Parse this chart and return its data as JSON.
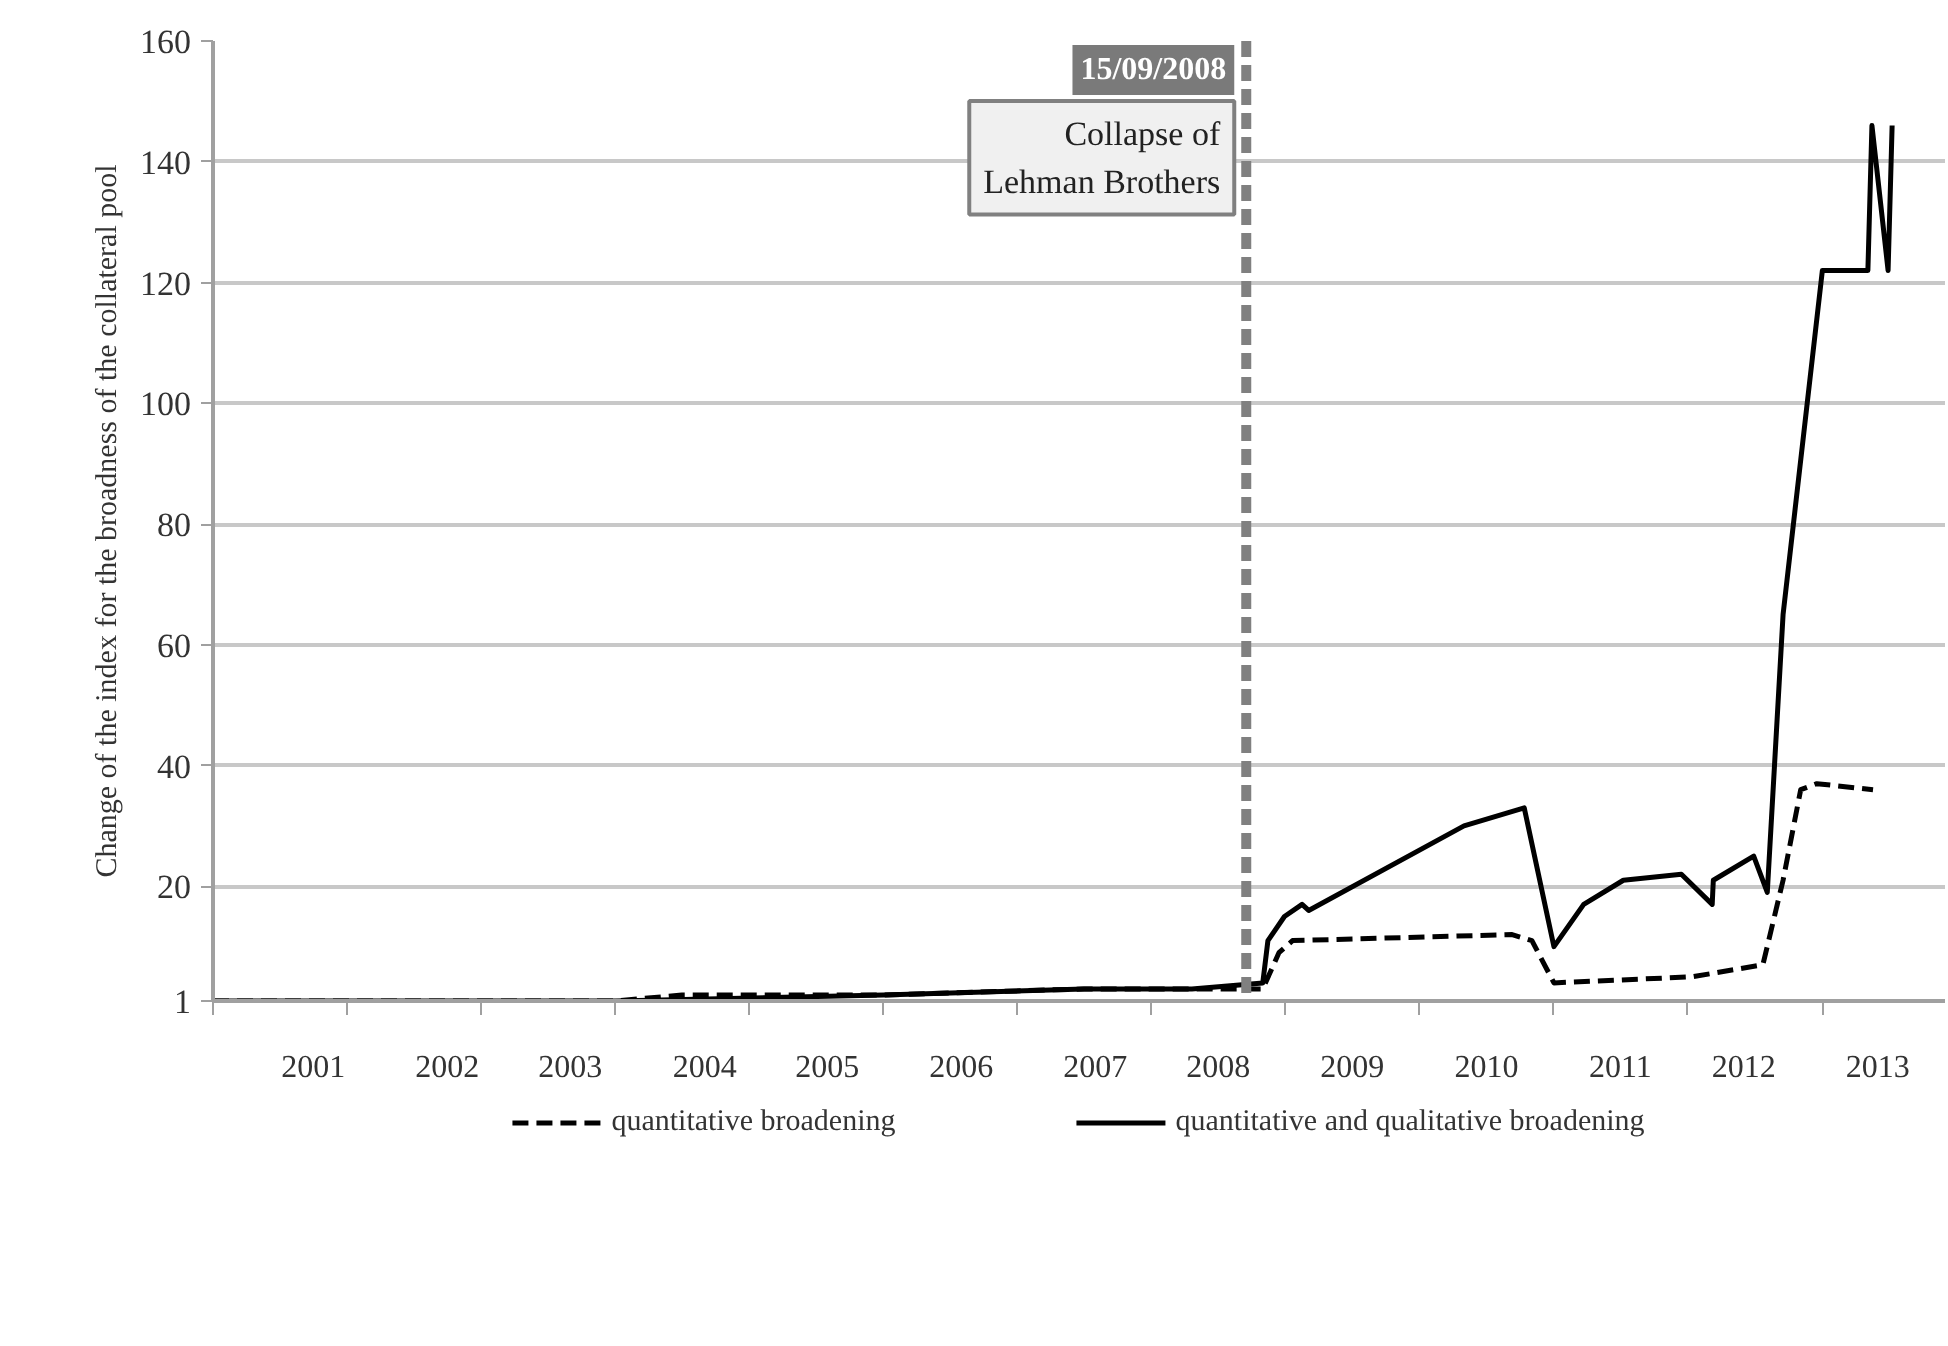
{
  "chart_data": {
    "type": "line",
    "ylabel": "Change of the index for the broadness of the collateral pool",
    "xlim": [
      "2001-01-01",
      "2013-12-01"
    ],
    "ylim": [
      1,
      160
    ],
    "xticks": [
      {
        "value": "2001-01-01",
        "label": null
      },
      {
        "value": "2002-01-01",
        "label": null
      },
      {
        "value": "2003-01-01",
        "label": null
      },
      {
        "value": "2004-01-01",
        "label": null
      },
      {
        "value": "2005-01-01",
        "label": null
      },
      {
        "value": "2006-01-01",
        "label": null
      },
      {
        "value": "2007-01-01",
        "label": null
      },
      {
        "value": "2008-01-01",
        "label": null
      },
      {
        "value": "2009-01-01",
        "label": null
      },
      {
        "value": "2010-01-01",
        "label": null
      },
      {
        "value": "2011-01-01",
        "label": null
      },
      {
        "value": "2012-01-01",
        "label": null
      },
      {
        "value": "2013-01-01",
        "label": null
      },
      {
        "value": "2001-10-01",
        "label": "2001"
      },
      {
        "value": "2002-10-01",
        "label": "2002"
      },
      {
        "value": "2003-09-01",
        "label": "2003"
      },
      {
        "value": "2004-09-01",
        "label": "2004"
      },
      {
        "value": "2005-08-01",
        "label": "2005"
      },
      {
        "value": "2006-08-01",
        "label": "2006"
      },
      {
        "value": "2007-08-01",
        "label": "2007"
      },
      {
        "value": "2008-07-01",
        "label": "2008"
      },
      {
        "value": "2009-07-01",
        "label": "2009"
      },
      {
        "value": "2010-07-01",
        "label": "2010"
      },
      {
        "value": "2011-07-01",
        "label": "2011"
      },
      {
        "value": "2012-06-01",
        "label": "2012"
      },
      {
        "value": "2013-06-01",
        "label": "2013"
      }
    ],
    "yticks": [
      1,
      20,
      40,
      60,
      80,
      100,
      120,
      140,
      160
    ],
    "grid": "y",
    "legend": "bottom",
    "series": [
      {
        "name": "quantitative broadening",
        "color": "#000000",
        "line_style": "dashed",
        "x": [
          "2001-01-01",
          "2004-01-01",
          "2004-07-01",
          "2005-01-01",
          "2006-01-01",
          "2007-07-01",
          "2008-07-01",
          "2008-10-30",
          "2008-12-13",
          "2009-01-19",
          "2010-09-09",
          "2010-11-02",
          "2011-01-01",
          "2012-01-12",
          "2012-07-23",
          "2012-09-16",
          "2012-11-03",
          "2012-12-17",
          "2013-05-19"
        ],
        "values": [
          1,
          1,
          2,
          2,
          2,
          3,
          3,
          3,
          9,
          11,
          12,
          11,
          4,
          5,
          7,
          21,
          36,
          37,
          36
        ]
      },
      {
        "name": "quantitative and qualitative broadening",
        "color": "#000000",
        "line_style": "solid",
        "x": [
          "2001-01-01",
          "2004-01-01",
          "2006-01-01",
          "2007-07-01",
          "2008-04-20",
          "2008-10-30",
          "2008-11-13",
          "2008-12-28",
          "2009-02-14",
          "2009-03-04",
          "2010-05-01",
          "2010-10-12",
          "2011-01-01",
          "2011-03-23",
          "2011-07-09",
          "2011-12-14",
          "2012-03-07",
          "2012-03-10",
          "2012-06-28",
          "2012-08-04",
          "2012-09-16",
          "2013-01-01",
          "2013-05-05",
          "2013-05-16",
          "2013-06-29",
          "2013-07-10"
        ],
        "values": [
          1,
          1,
          2,
          3,
          3,
          4,
          11,
          15,
          17,
          16,
          30,
          33,
          10,
          17,
          21,
          22,
          17,
          21,
          25,
          19,
          65,
          122,
          122,
          146,
          122,
          146
        ]
      }
    ],
    "ref_lines": [
      {
        "axis": "x",
        "value": "2008-09-15",
        "label": "15/09/2008",
        "color": "#808080",
        "line_style": "dashed"
      }
    ],
    "annotations": [
      "Collapse of\nLehman Brothers"
    ]
  }
}
